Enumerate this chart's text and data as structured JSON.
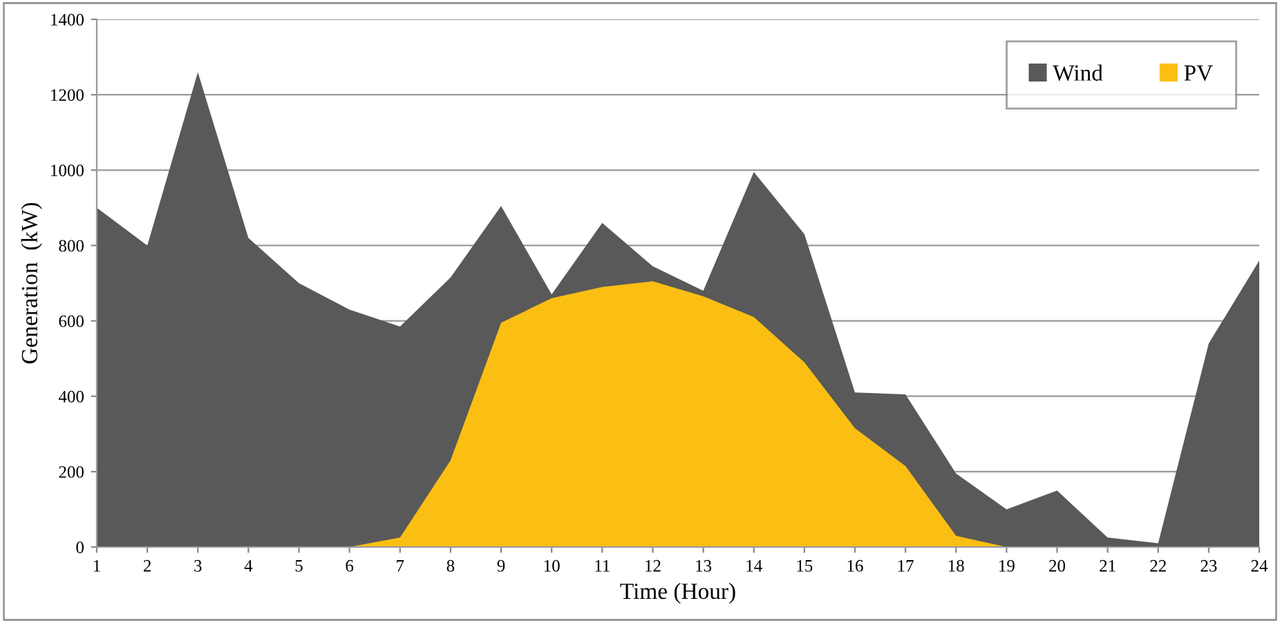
{
  "chart_data": {
    "type": "area",
    "xlabel": "Time (Hour)",
    "ylabel": "Generation  (kW)",
    "x": [
      1,
      2,
      3,
      4,
      5,
      6,
      7,
      8,
      9,
      10,
      11,
      12,
      13,
      14,
      15,
      16,
      17,
      18,
      19,
      20,
      21,
      22,
      23,
      24
    ],
    "series": [
      {
        "name": "Wind",
        "color": "#595959",
        "values": [
          900,
          800,
          1260,
          820,
          700,
          630,
          585,
          715,
          905,
          670,
          860,
          745,
          680,
          995,
          830,
          410,
          405,
          195,
          100,
          150,
          25,
          10,
          540,
          760
        ]
      },
      {
        "name": "PV",
        "color": "#fbbf13",
        "values": [
          0,
          0,
          0,
          0,
          0,
          0,
          25,
          230,
          595,
          660,
          690,
          705,
          665,
          610,
          490,
          315,
          215,
          30,
          0,
          0,
          0,
          0,
          0,
          0
        ]
      }
    ],
    "xlim": [
      1,
      24
    ],
    "xticks": [
      1,
      2,
      3,
      4,
      5,
      6,
      7,
      8,
      9,
      10,
      11,
      12,
      13,
      14,
      15,
      16,
      17,
      18,
      19,
      20,
      21,
      22,
      23,
      24
    ],
    "ylim": [
      0,
      1400
    ],
    "yticks": [
      0,
      200,
      400,
      600,
      800,
      1000,
      1200,
      1400
    ],
    "grid": "y",
    "legend": "top right"
  }
}
